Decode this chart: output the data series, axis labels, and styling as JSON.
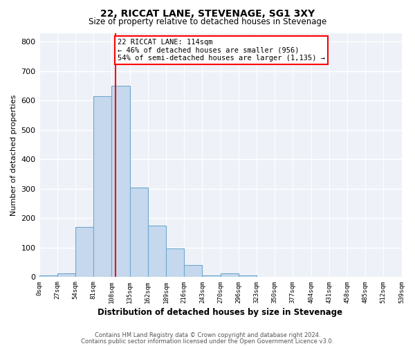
{
  "title": "22, RICCAT LANE, STEVENAGE, SG1 3XY",
  "subtitle": "Size of property relative to detached houses in Stevenage",
  "xlabel": "Distribution of detached houses by size in Stevenage",
  "ylabel": "Number of detached properties",
  "bar_edges": [
    0,
    27,
    54,
    81,
    108,
    135,
    162,
    189,
    216,
    243,
    270,
    297,
    324,
    351,
    378,
    405,
    432,
    459,
    486,
    513,
    540
  ],
  "bar_heights": [
    5,
    12,
    170,
    615,
    650,
    305,
    175,
    97,
    40,
    5,
    12,
    5,
    0,
    2,
    0,
    0,
    0,
    0,
    0,
    0
  ],
  "bar_color": "#c5d8ed",
  "bar_edgecolor": "#6fa8d0",
  "property_line_x": 114,
  "property_line_color": "red",
  "ylim": [
    0,
    830
  ],
  "xlim": [
    0,
    540
  ],
  "annotation_text": "22 RICCAT LANE: 114sqm\n← 46% of detached houses are smaller (956)\n54% of semi-detached houses are larger (1,135) →",
  "annotation_box_color": "white",
  "annotation_box_edgecolor": "red",
  "footnote1": "Contains HM Land Registry data © Crown copyright and database right 2024.",
  "footnote2": "Contains public sector information licensed under the Open Government Licence v3.0.",
  "tick_labels": [
    "0sqm",
    "27sqm",
    "54sqm",
    "81sqm",
    "108sqm",
    "135sqm",
    "162sqm",
    "189sqm",
    "216sqm",
    "243sqm",
    "270sqm",
    "296sqm",
    "323sqm",
    "350sqm",
    "377sqm",
    "404sqm",
    "431sqm",
    "458sqm",
    "485sqm",
    "512sqm",
    "539sqm"
  ],
  "yticks": [
    0,
    100,
    200,
    300,
    400,
    500,
    600,
    700,
    800
  ],
  "background_color": "#eef2f8"
}
